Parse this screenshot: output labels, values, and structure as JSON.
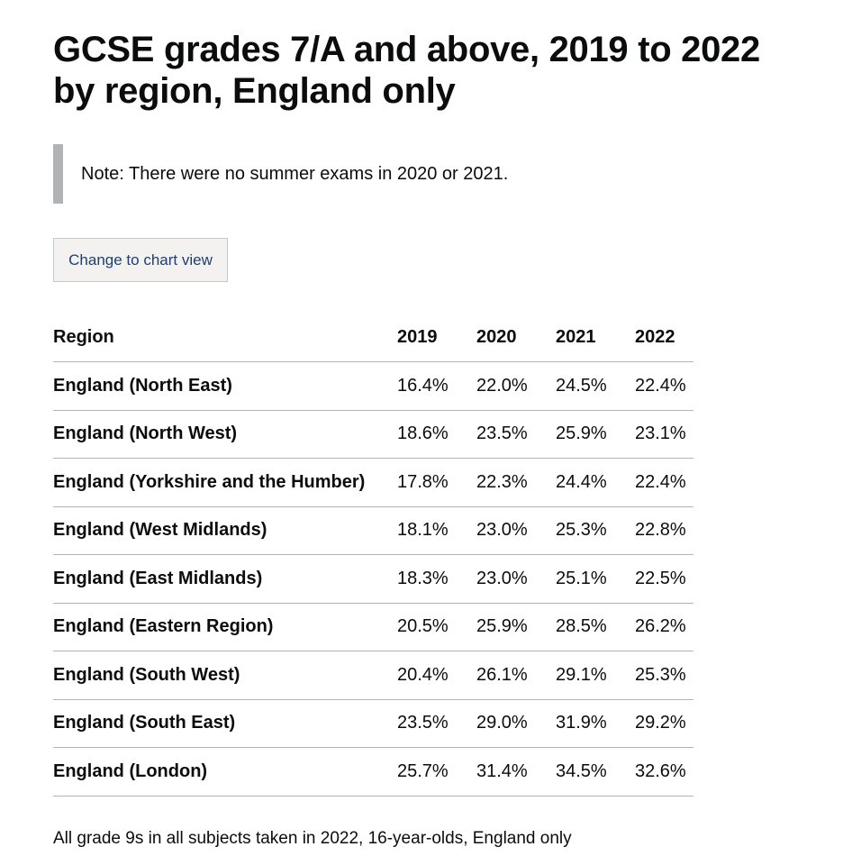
{
  "page": {
    "title": "GCSE grades 7/A and above, 2019 to 2022 by region, England only",
    "note": "Note: There were no summer exams in 2020 or 2021.",
    "toggle_label": "Change to chart view",
    "caption": "All grade 9s in all subjects taken in 2022, 16-year-olds, England only"
  },
  "table": {
    "headers": [
      "Region",
      "2019",
      "2020",
      "2021",
      "2022"
    ],
    "rows": [
      {
        "region": "England (North East)",
        "values": [
          "16.4%",
          "22.0%",
          "24.5%",
          "22.4%"
        ]
      },
      {
        "region": "England (North West)",
        "values": [
          "18.6%",
          "23.5%",
          "25.9%",
          "23.1%"
        ]
      },
      {
        "region": "England (Yorkshire and the Humber)",
        "values": [
          "17.8%",
          "22.3%",
          "24.4%",
          "22.4%"
        ]
      },
      {
        "region": "England (West Midlands)",
        "values": [
          "18.1%",
          "23.0%",
          "25.3%",
          "22.8%"
        ]
      },
      {
        "region": "England (East Midlands)",
        "values": [
          "18.3%",
          "23.0%",
          "25.1%",
          "22.5%"
        ]
      },
      {
        "region": "England (Eastern Region)",
        "values": [
          "20.5%",
          "25.9%",
          "28.5%",
          "26.2%"
        ]
      },
      {
        "region": "England (South West)",
        "values": [
          "20.4%",
          "26.1%",
          "29.1%",
          "25.3%"
        ]
      },
      {
        "region": "England (South East)",
        "values": [
          "23.5%",
          "29.0%",
          "31.9%",
          "29.2%"
        ]
      },
      {
        "region": "England (London)",
        "values": [
          "25.7%",
          "31.4%",
          "34.5%",
          "32.6%"
        ]
      }
    ]
  }
}
